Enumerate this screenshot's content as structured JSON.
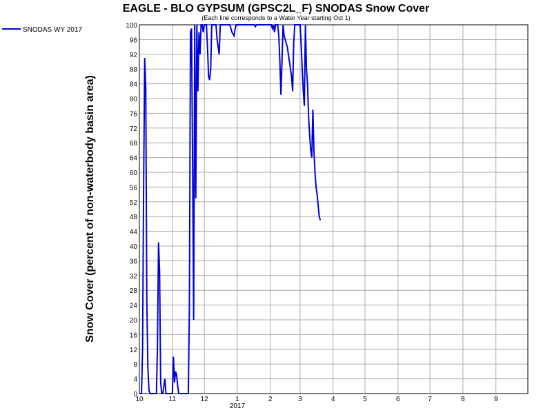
{
  "chart_data": {
    "type": "line",
    "title": "EAGLE - BLO GYPSUM (GPSC2L_F) SNODAS Snow Cover",
    "subtitle": "(Each line corresponds to a Water Year starting Oct 1)",
    "y_label": "Snow Cover (percent of non-waterbody basin area)",
    "x_year_label": {
      "value": 92,
      "label": "2017"
    },
    "legend_position": "upper-left-outside",
    "grid": true,
    "xlim": [
      0,
      365
    ],
    "xticks": [
      {
        "value": 0,
        "label": "10"
      },
      {
        "value": 31,
        "label": "11"
      },
      {
        "value": 61,
        "label": "12"
      },
      {
        "value": 92,
        "label": "1"
      },
      {
        "value": 123,
        "label": "2"
      },
      {
        "value": 151,
        "label": "3"
      },
      {
        "value": 182,
        "label": "4"
      },
      {
        "value": 212,
        "label": "5"
      },
      {
        "value": 243,
        "label": "6"
      },
      {
        "value": 273,
        "label": "7"
      },
      {
        "value": 304,
        "label": "8"
      },
      {
        "value": 335,
        "label": "9"
      }
    ],
    "ylim": [
      0,
      100
    ],
    "yticks": [
      0,
      4,
      8,
      12,
      16,
      20,
      24,
      28,
      32,
      36,
      40,
      44,
      48,
      52,
      56,
      60,
      64,
      68,
      72,
      76,
      80,
      84,
      88,
      92,
      96,
      100
    ],
    "x": [
      0,
      1,
      2,
      3,
      4,
      5,
      6,
      7,
      8,
      9,
      10,
      11,
      12,
      13,
      14,
      15,
      16,
      17,
      18,
      19,
      20,
      21,
      22,
      23,
      24,
      25,
      26,
      27,
      28,
      29,
      30,
      31,
      32,
      33,
      34,
      35,
      36,
      37,
      38,
      39,
      40,
      41,
      42,
      43,
      44,
      45,
      46,
      47,
      48,
      49,
      50,
      51,
      52,
      53,
      54,
      55,
      56,
      57,
      58,
      59,
      60,
      61,
      62,
      63,
      64,
      65,
      66,
      67,
      68,
      69,
      70,
      71,
      72,
      73,
      74,
      75,
      76,
      77,
      78,
      79,
      80,
      81,
      82,
      83,
      84,
      85,
      86,
      87,
      88,
      89,
      90,
      91,
      92,
      93,
      94,
      95,
      96,
      97,
      98,
      99,
      100,
      101,
      102,
      103,
      104,
      105,
      106,
      107,
      108,
      109,
      110,
      111,
      112,
      113,
      114,
      115,
      116,
      117,
      118,
      119,
      120,
      121,
      122,
      123,
      124,
      125,
      126,
      127,
      128,
      129,
      130,
      131,
      132,
      133,
      134,
      135,
      136,
      137,
      138,
      139,
      140,
      141,
      142,
      143,
      144,
      145,
      146,
      147,
      148,
      149,
      150,
      151,
      152,
      153,
      154,
      155,
      156,
      157,
      158,
      159,
      160,
      161,
      162,
      163,
      164,
      165,
      166,
      167,
      168,
      169,
      170
    ],
    "series": [
      {
        "name": "SNODAS WY 2017",
        "color": "#0000dd",
        "values": [
          0,
          0,
          0,
          12,
          57,
          91,
          83,
          25,
          7,
          1,
          0,
          0,
          0,
          0,
          0,
          0,
          0,
          13,
          41,
          33,
          3,
          0,
          0,
          2,
          4,
          0,
          0,
          0,
          0,
          0,
          0,
          0,
          10,
          3,
          6,
          5,
          2,
          0,
          0,
          0,
          0,
          0,
          0,
          0,
          0,
          0,
          0,
          24,
          98,
          99,
          63,
          20,
          100,
          53,
          100,
          82,
          98,
          92,
          100,
          100,
          98,
          100,
          100,
          100,
          94,
          86,
          85,
          88,
          100,
          100,
          100,
          100,
          100,
          96,
          94,
          92,
          100,
          100,
          100,
          100,
          100,
          100,
          100,
          100,
          100,
          100,
          99,
          98,
          97.5,
          97,
          99,
          100,
          100,
          100,
          100,
          100,
          100,
          100,
          100,
          100,
          100,
          100,
          100,
          100,
          100,
          100,
          100,
          100,
          100,
          99.5,
          100,
          100,
          100,
          100,
          100,
          100,
          100,
          100,
          100,
          100,
          100,
          100,
          100,
          100,
          100,
          99,
          100,
          98,
          100,
          100,
          100,
          97,
          90,
          81,
          90,
          100,
          97,
          96,
          95,
          94,
          92,
          90,
          88,
          86,
          82,
          95,
          100,
          100,
          100,
          100,
          100,
          100,
          95,
          88,
          82,
          78,
          100,
          88,
          84,
          75,
          70,
          66,
          64,
          77,
          66,
          60,
          56,
          54,
          51,
          48,
          47
        ]
      }
    ]
  }
}
